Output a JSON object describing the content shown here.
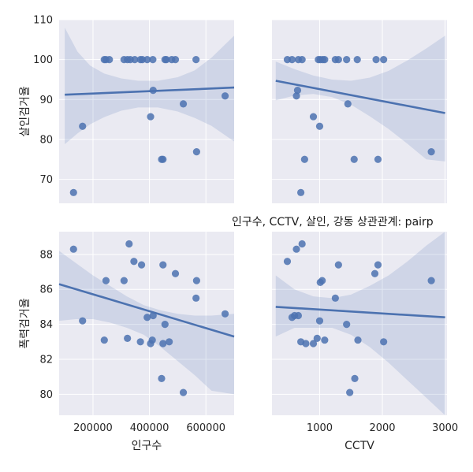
{
  "title": "인구수, CCTV, 살인, 강동 상관관계: pairp",
  "chart_data": [
    {
      "type": "scatter",
      "panel": "top-left",
      "xlabel": "",
      "ylabel": "살인검거율",
      "xlim": [
        80000,
        700000
      ],
      "ylim": [
        64,
        110
      ],
      "xticks": [],
      "yticks": [
        70,
        80,
        90,
        100,
        110
      ],
      "xtick_labels": [],
      "ytick_labels": [
        "70",
        "80",
        "90",
        "100",
        "110"
      ],
      "x": [
        131000,
        163000,
        240000,
        246000,
        258000,
        310000,
        322000,
        332000,
        348000,
        368000,
        375000,
        392000,
        404000,
        413000,
        412000,
        443000,
        448000,
        455000,
        460000,
        479000,
        492000,
        520000,
        565000,
        567000,
        668000
      ],
      "y": [
        66.7,
        83.3,
        100,
        100,
        100,
        100,
        100,
        100,
        100,
        100,
        100,
        100,
        85.7,
        92.3,
        100,
        75,
        75,
        100,
        100,
        100,
        100,
        88.9,
        100,
        76.9,
        90.9
      ],
      "fit": [
        [
          100000,
          91.2
        ],
        [
          700000,
          93.0
        ]
      ],
      "ci": [
        [
          100000,
          108
        ],
        [
          145000,
          102
        ],
        [
          190000,
          98.5
        ],
        [
          240000,
          96.5
        ],
        [
          300000,
          95.3
        ],
        [
          360000,
          94.7
        ],
        [
          430000,
          94.7
        ],
        [
          500000,
          95.6
        ],
        [
          560000,
          97.3
        ],
        [
          620000,
          100.5
        ],
        [
          700000,
          106
        ]
      ],
      "ci_lower": [
        [
          100000,
          78.8
        ],
        [
          145000,
          81.5
        ],
        [
          190000,
          83.8
        ],
        [
          240000,
          85.6
        ],
        [
          300000,
          87.2
        ],
        [
          360000,
          88.0
        ],
        [
          430000,
          88.0
        ],
        [
          500000,
          87.0
        ],
        [
          560000,
          85.4
        ],
        [
          620000,
          83.4
        ],
        [
          700000,
          79.5
        ]
      ]
    },
    {
      "type": "scatter",
      "panel": "top-right",
      "xlabel": "",
      "ylabel": "",
      "xlim": [
        240,
        3030
      ],
      "ylim": [
        64,
        110
      ],
      "xticks": [],
      "yticks": [],
      "xtick_labels": [],
      "ytick_labels": [],
      "x": [
        485,
        560,
        630,
        648,
        660,
        700,
        720,
        760,
        900,
        980,
        1000,
        1010,
        1050,
        1080,
        1250,
        1300,
        1430,
        1450,
        1550,
        1600,
        1900,
        1930,
        2020,
        2780
      ],
      "y": [
        100,
        100,
        90.9,
        92.3,
        100,
        66.7,
        100,
        75,
        85.7,
        100,
        83.3,
        100,
        100,
        100,
        100,
        100,
        100,
        88.9,
        75,
        100,
        100,
        75,
        100,
        76.9
      ],
      "fit": [
        [
          300,
          94.7
        ],
        [
          3000,
          86.6
        ]
      ],
      "ci": [
        [
          300,
          99.5
        ],
        [
          600,
          97.6
        ],
        [
          900,
          96.0
        ],
        [
          1200,
          95.0
        ],
        [
          1500,
          94.7
        ],
        [
          1800,
          95.5
        ],
        [
          2100,
          97.2
        ],
        [
          2400,
          99.8
        ],
        [
          2700,
          102.8
        ],
        [
          3000,
          106
        ]
      ],
      "ci_lower": [
        [
          300,
          89.8
        ],
        [
          600,
          91.0
        ],
        [
          900,
          91.4
        ],
        [
          1200,
          90.6
        ],
        [
          1500,
          88.7
        ],
        [
          1800,
          85.8
        ],
        [
          2100,
          82.6
        ],
        [
          2400,
          78.9
        ],
        [
          2700,
          75.0
        ],
        [
          3000,
          74.5
        ]
      ]
    },
    {
      "type": "scatter",
      "panel": "bottom-left",
      "xlabel": "인구수",
      "ylabel": "폭력검거율",
      "xlim": [
        80000,
        700000
      ],
      "ylim": [
        78.8,
        89.3
      ],
      "xticks": [
        200000,
        400000,
        600000
      ],
      "yticks": [
        80,
        82,
        84,
        86,
        88
      ],
      "xtick_labels": [
        "200000",
        "400000",
        "600000"
      ],
      "ytick_labels": [
        "80",
        "82",
        "84",
        "86",
        "88"
      ],
      "x": [
        131000,
        163000,
        240000,
        246000,
        310000,
        322000,
        328000,
        345000,
        368000,
        372000,
        392000,
        404000,
        410000,
        413000,
        443000,
        448000,
        448000,
        455000,
        470000,
        492000,
        520000,
        565000,
        567000,
        668000
      ],
      "y": [
        88.3,
        84.2,
        83.1,
        86.5,
        86.5,
        83.2,
        88.6,
        87.6,
        83.0,
        87.4,
        84.4,
        82.9,
        83.1,
        84.5,
        80.9,
        87.4,
        82.9,
        84.0,
        83.0,
        86.9,
        80.1,
        85.5,
        86.5,
        84.6
      ],
      "fit": [
        [
          80000,
          86.3
        ],
        [
          700000,
          83.3
        ]
      ],
      "ci": [
        [
          80000,
          88.2
        ],
        [
          140000,
          87.5
        ],
        [
          200000,
          86.8
        ],
        [
          260000,
          86.2
        ],
        [
          320000,
          85.6
        ],
        [
          380000,
          85.1
        ],
        [
          440000,
          84.8
        ],
        [
          500000,
          84.6
        ],
        [
          560000,
          84.5
        ],
        [
          620000,
          84.5
        ],
        [
          700000,
          84.6
        ]
      ],
      "ci_lower": [
        [
          80000,
          84.2
        ],
        [
          140000,
          84.3
        ],
        [
          200000,
          84.3
        ],
        [
          260000,
          84.1
        ],
        [
          320000,
          83.8
        ],
        [
          380000,
          83.4
        ],
        [
          440000,
          82.7
        ],
        [
          500000,
          81.9
        ],
        [
          560000,
          81.1
        ],
        [
          620000,
          80.2
        ],
        [
          700000,
          80.0
        ]
      ]
    },
    {
      "type": "scatter",
      "panel": "bottom-right",
      "xlabel": "CCTV",
      "ylabel": "",
      "xlim": [
        240,
        3030
      ],
      "ylim": [
        78.8,
        89.3
      ],
      "xticks": [
        1000,
        2000,
        3000
      ],
      "yticks": [],
      "xtick_labels": [
        "1000",
        "2000",
        "3000"
      ],
      "ytick_labels": [],
      "x": [
        485,
        560,
        600,
        630,
        660,
        700,
        720,
        780,
        900,
        960,
        1000,
        1010,
        1040,
        1080,
        1250,
        1300,
        1430,
        1480,
        1560,
        1610,
        1880,
        1930,
        2020,
        2780
      ],
      "y": [
        87.6,
        84.4,
        84.5,
        88.3,
        84.5,
        83.0,
        88.6,
        82.9,
        82.9,
        83.2,
        84.2,
        86.4,
        86.5,
        83.1,
        85.5,
        87.4,
        84.0,
        80.1,
        80.9,
        83.1,
        86.9,
        87.4,
        83.0,
        86.5
      ],
      "fit": [
        [
          300,
          85.0
        ],
        [
          3000,
          84.4
        ]
      ],
      "ci": [
        [
          300,
          86.8
        ],
        [
          600,
          86.0
        ],
        [
          900,
          85.6
        ],
        [
          1200,
          85.5
        ],
        [
          1500,
          85.7
        ],
        [
          1800,
          86.2
        ],
        [
          2100,
          86.8
        ],
        [
          2400,
          87.6
        ],
        [
          2700,
          88.5
        ],
        [
          3000,
          89.3
        ]
      ],
      "ci_lower": [
        [
          300,
          83.3
        ],
        [
          600,
          83.8
        ],
        [
          900,
          83.8
        ],
        [
          1200,
          83.8
        ],
        [
          1500,
          83.4
        ],
        [
          1800,
          82.7
        ],
        [
          2100,
          81.8
        ],
        [
          2400,
          80.8
        ],
        [
          2700,
          79.8
        ],
        [
          3000,
          78.8
        ]
      ]
    }
  ]
}
